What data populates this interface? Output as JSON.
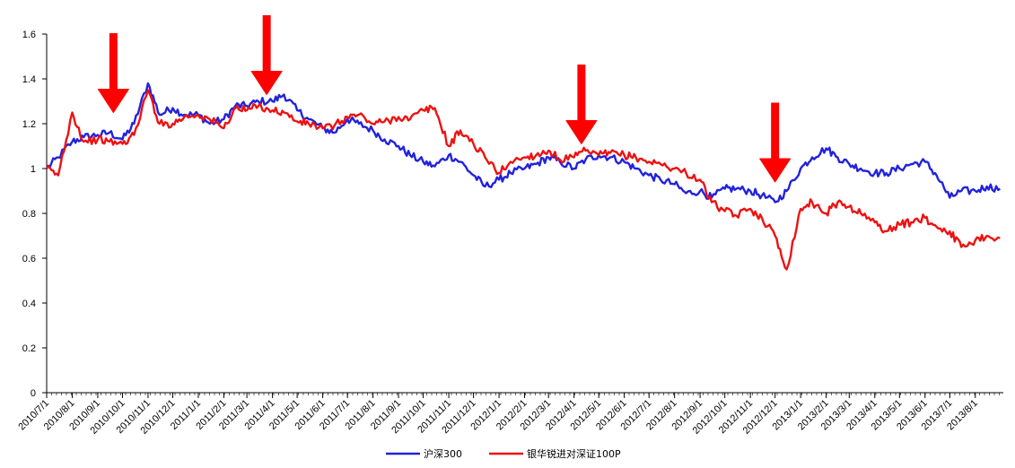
{
  "chart_data": {
    "type": "line",
    "title": "",
    "xlabel": "",
    "ylabel": "",
    "ylim": [
      0,
      1.6
    ],
    "yticks": [
      "0",
      "0.2",
      "0.4",
      "0.6",
      "0.8",
      "1",
      "1.2",
      "1.4",
      "1.6"
    ],
    "x_tick_labels": [
      "2010/7/1",
      "2010/8/1",
      "2010/9/1",
      "2010/10/1",
      "2010/11/1",
      "2010/12/1",
      "2011/1/1",
      "2011/2/1",
      "2011/3/1",
      "2011/4/1",
      "2011/5/1",
      "2011/6/1",
      "2011/7/1",
      "2011/8/1",
      "2011/9/1",
      "2011/10/1",
      "2011/11/1",
      "2011/12/1",
      "2012/1/1",
      "2012/2/1",
      "2012/3/1",
      "2012/4/1",
      "2012/5/1",
      "2012/6/1",
      "2012/7/1",
      "2012/8/1",
      "2012/9/1",
      "2012/10/1",
      "2012/11/1",
      "2012/12/1",
      "2013/1/1",
      "2013/2/1",
      "2013/3/1",
      "2013/4/1",
      "2013/5/1",
      "2013/6/1",
      "2013/7/1",
      "2013/8/1"
    ],
    "grid": false,
    "legend_position": "bottom",
    "series": [
      {
        "name": "沪深300",
        "color": "#2222dd",
        "x": [
          "2010/7/1",
          "2010/7/15",
          "2010/8/1",
          "2010/8/15",
          "2010/9/1",
          "2010/9/15",
          "2010/10/1",
          "2010/10/15",
          "2010/11/1",
          "2010/11/15",
          "2010/12/1",
          "2010/12/15",
          "2011/1/1",
          "2011/1/15",
          "2011/2/1",
          "2011/2/15",
          "2011/3/1",
          "2011/3/15",
          "2011/4/1",
          "2011/4/15",
          "2011/5/1",
          "2011/5/15",
          "2011/6/1",
          "2011/6/15",
          "2011/7/1",
          "2011/7/15",
          "2011/8/1",
          "2011/8/15",
          "2011/9/1",
          "2011/9/15",
          "2011/10/1",
          "2011/10/15",
          "2011/11/1",
          "2011/11/15",
          "2011/12/1",
          "2011/12/15",
          "2012/1/1",
          "2012/1/15",
          "2012/2/1",
          "2012/2/15",
          "2012/3/1",
          "2012/3/15",
          "2012/4/1",
          "2012/4/15",
          "2012/5/1",
          "2012/5/15",
          "2012/6/1",
          "2012/6/15",
          "2012/7/1",
          "2012/7/15",
          "2012/8/1",
          "2012/8/15",
          "2012/9/1",
          "2012/9/15",
          "2012/10/1",
          "2012/10/15",
          "2012/11/1",
          "2012/11/15",
          "2012/12/1",
          "2012/12/15",
          "2013/1/1",
          "2013/1/15",
          "2013/2/1",
          "2013/2/15",
          "2013/3/1",
          "2013/3/15",
          "2013/4/1",
          "2013/4/15",
          "2013/5/1",
          "2013/5/15",
          "2013/6/1",
          "2013/6/15",
          "2013/7/1",
          "2013/7/15",
          "2013/8/1",
          "2013/8/15",
          "2013/8/31"
        ],
        "values": [
          1.0,
          1.05,
          1.12,
          1.14,
          1.15,
          1.16,
          1.13,
          1.2,
          1.38,
          1.24,
          1.27,
          1.24,
          1.24,
          1.2,
          1.22,
          1.28,
          1.28,
          1.3,
          1.3,
          1.33,
          1.26,
          1.22,
          1.18,
          1.16,
          1.22,
          1.2,
          1.17,
          1.13,
          1.1,
          1.06,
          1.03,
          1.01,
          1.06,
          1.03,
          0.97,
          0.92,
          0.95,
          0.98,
          1.0,
          1.02,
          1.05,
          1.03,
          1.0,
          1.04,
          1.06,
          1.05,
          1.03,
          1.0,
          0.97,
          0.95,
          0.93,
          0.89,
          0.9,
          0.87,
          0.91,
          0.91,
          0.9,
          0.88,
          0.85,
          0.9,
          1.0,
          1.05,
          1.09,
          1.05,
          1.02,
          1.0,
          0.98,
          0.98,
          1.0,
          1.02,
          1.03,
          0.97,
          0.87,
          0.9,
          0.9,
          0.92,
          0.91
        ]
      },
      {
        "name": "银华锐进对深证100P",
        "color": "#ee1111",
        "x": [
          "2010/7/1",
          "2010/7/15",
          "2010/8/1",
          "2010/8/15",
          "2010/9/1",
          "2010/9/15",
          "2010/10/1",
          "2010/10/15",
          "2010/11/1",
          "2010/11/15",
          "2010/12/1",
          "2010/12/15",
          "2011/1/1",
          "2011/1/15",
          "2011/2/1",
          "2011/2/15",
          "2011/3/1",
          "2011/3/15",
          "2011/4/1",
          "2011/4/15",
          "2011/5/1",
          "2011/5/15",
          "2011/6/1",
          "2011/6/15",
          "2011/7/1",
          "2011/7/15",
          "2011/8/1",
          "2011/8/15",
          "2011/9/1",
          "2011/9/15",
          "2011/10/1",
          "2011/10/15",
          "2011/11/1",
          "2011/11/15",
          "2011/12/1",
          "2011/12/15",
          "2012/1/1",
          "2012/1/15",
          "2012/2/1",
          "2012/2/15",
          "2012/3/1",
          "2012/3/15",
          "2012/4/1",
          "2012/4/15",
          "2012/5/1",
          "2012/5/15",
          "2012/6/1",
          "2012/6/15",
          "2012/7/1",
          "2012/7/15",
          "2012/8/1",
          "2012/8/15",
          "2012/9/1",
          "2012/9/15",
          "2012/10/1",
          "2012/10/15",
          "2012/11/1",
          "2012/11/15",
          "2012/12/1",
          "2012/12/15",
          "2013/1/1",
          "2013/1/15",
          "2013/2/1",
          "2013/2/15",
          "2013/3/1",
          "2013/3/15",
          "2013/4/1",
          "2013/4/15",
          "2013/5/1",
          "2013/5/15",
          "2013/6/1",
          "2013/6/15",
          "2013/7/1",
          "2013/7/15",
          "2013/8/1",
          "2013/8/15",
          "2013/8/31"
        ],
        "values": [
          1.0,
          0.97,
          1.25,
          1.12,
          1.13,
          1.12,
          1.11,
          1.15,
          1.35,
          1.2,
          1.2,
          1.23,
          1.24,
          1.22,
          1.18,
          1.27,
          1.26,
          1.28,
          1.26,
          1.25,
          1.21,
          1.2,
          1.18,
          1.19,
          1.23,
          1.24,
          1.2,
          1.21,
          1.23,
          1.22,
          1.26,
          1.27,
          1.1,
          1.17,
          1.11,
          1.05,
          0.98,
          1.03,
          1.05,
          1.06,
          1.08,
          1.04,
          1.05,
          1.08,
          1.06,
          1.07,
          1.06,
          1.05,
          1.03,
          1.02,
          1.0,
          0.98,
          0.95,
          0.85,
          0.81,
          0.79,
          0.82,
          0.78,
          0.7,
          0.55,
          0.82,
          0.85,
          0.8,
          0.85,
          0.83,
          0.8,
          0.76,
          0.72,
          0.75,
          0.76,
          0.78,
          0.74,
          0.72,
          0.65,
          0.68,
          0.7,
          0.69
        ]
      }
    ],
    "annotations": [
      {
        "type": "arrow-down",
        "color": "#ff0000",
        "at_x": "2010/9/20",
        "tip_y": 1.25
      },
      {
        "type": "arrow-down",
        "color": "#ff0000",
        "at_x": "2011/3/25",
        "tip_y": 1.33
      },
      {
        "type": "arrow-down",
        "color": "#ff0000",
        "at_x": "2012/4/10",
        "tip_y": 1.11
      },
      {
        "type": "arrow-down",
        "color": "#ff0000",
        "at_x": "2012/12/1",
        "tip_y": 0.94
      }
    ]
  }
}
